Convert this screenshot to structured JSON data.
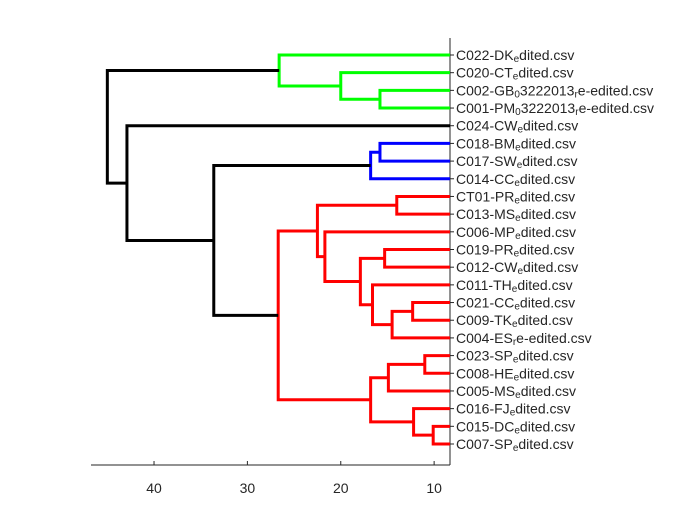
{
  "chart_data": {
    "type": "dendrogram",
    "orientation": "left",
    "xlim": [
      46.75,
      8.3
    ],
    "xticks": [
      40,
      30,
      20,
      10
    ],
    "xtick_labels": [
      "40",
      "30",
      "20",
      "10"
    ],
    "leaves": [
      {
        "base": "C022-DK",
        "sub": "e",
        "rest": "dited.csv"
      },
      {
        "base": "C020-CT",
        "sub": "e",
        "rest": "dited.csv"
      },
      {
        "base": "C002-GB",
        "sub": "0",
        "rest": "3222013",
        "sub2": "r",
        "rest2": "e-edited.csv"
      },
      {
        "base": "C001-PM",
        "sub": "0",
        "rest": "3222013",
        "sub2": "r",
        "rest2": "e-edited.csv"
      },
      {
        "base": "C024-CW",
        "sub": "e",
        "rest": "dited.csv"
      },
      {
        "base": "C018-BM",
        "sub": "e",
        "rest": "dited.csv"
      },
      {
        "base": "C017-SW",
        "sub": "e",
        "rest": "dited.csv"
      },
      {
        "base": "C014-CC",
        "sub": "e",
        "rest": "dited.csv"
      },
      {
        "base": "CT01-PR",
        "sub": "e",
        "rest": "dited.csv"
      },
      {
        "base": "C013-MS",
        "sub": "e",
        "rest": "dited.csv"
      },
      {
        "base": "C006-MP",
        "sub": "e",
        "rest": "dited.csv"
      },
      {
        "base": "C019-PR",
        "sub": "e",
        "rest": "dited.csv"
      },
      {
        "base": "C012-CW",
        "sub": "e",
        "rest": "dited.csv"
      },
      {
        "base": "C011-TH",
        "sub": "e",
        "rest": "dited.csv"
      },
      {
        "base": "C021-CC",
        "sub": "e",
        "rest": "dited.csv"
      },
      {
        "base": "C009-TK",
        "sub": "e",
        "rest": "dited.csv"
      },
      {
        "base": "C004-ES",
        "sub": "r",
        "rest": "e-edited.csv"
      },
      {
        "base": "C023-SP",
        "sub": "e",
        "rest": "dited.csv"
      },
      {
        "base": "C008-HE",
        "sub": "e",
        "rest": "dited.csv"
      },
      {
        "base": "C005-MS",
        "sub": "e",
        "rest": "dited.csv"
      },
      {
        "base": "C016-FJ",
        "sub": "e",
        "rest": "dited.csv"
      },
      {
        "base": "C015-DC",
        "sub": "e",
        "rest": "dited.csv"
      },
      {
        "base": "C007-SP",
        "sub": "e",
        "rest": "dited.csv"
      }
    ],
    "links": [
      {
        "a": 2,
        "b": 3,
        "height": 15.8,
        "cluster": "green"
      },
      {
        "a": 1,
        "b": 23,
        "height": 20.0,
        "cluster": "green"
      },
      {
        "a": 0,
        "b": 24,
        "height": 26.6,
        "cluster": "green"
      },
      {
        "a": 5,
        "b": 6,
        "height": 15.8,
        "cluster": "blue"
      },
      {
        "a": 26,
        "b": 7,
        "height": 16.8,
        "cluster": "blue"
      },
      {
        "a": 8,
        "b": 9,
        "height": 14.0,
        "cluster": "red"
      },
      {
        "a": 11,
        "b": 12,
        "height": 15.3,
        "cluster": "red"
      },
      {
        "a": 14,
        "b": 15,
        "height": 12.3,
        "cluster": "red"
      },
      {
        "a": 30,
        "b": 16,
        "height": 14.5,
        "cluster": "red"
      },
      {
        "a": 13,
        "b": 31,
        "height": 16.6,
        "cluster": "red"
      },
      {
        "a": 29,
        "b": 32,
        "height": 17.9,
        "cluster": "red"
      },
      {
        "a": 10,
        "b": 33,
        "height": 21.7,
        "cluster": "red"
      },
      {
        "a": 28,
        "b": 34,
        "height": 22.5,
        "cluster": "red"
      },
      {
        "a": 17,
        "b": 18,
        "height": 11.0,
        "cluster": "red"
      },
      {
        "a": 36,
        "b": 19,
        "height": 14.9,
        "cluster": "red"
      },
      {
        "a": 21,
        "b": 22,
        "height": 10.1,
        "cluster": "red"
      },
      {
        "a": 20,
        "b": 38,
        "height": 12.2,
        "cluster": "red"
      },
      {
        "a": 37,
        "b": 39,
        "height": 16.8,
        "cluster": "red"
      },
      {
        "a": 35,
        "b": 40,
        "height": 26.7,
        "cluster": "red"
      },
      {
        "a": 27,
        "b": 41,
        "height": 33.6,
        "cluster": "black"
      },
      {
        "a": 4,
        "b": 42,
        "height": 42.9,
        "cluster": "black"
      },
      {
        "a": 25,
        "b": 43,
        "height": 45.0,
        "cluster": "black"
      }
    ],
    "colors": {
      "green": "#00ff00",
      "blue": "#0000ff",
      "red": "#ff0000",
      "black": "#000000"
    }
  }
}
